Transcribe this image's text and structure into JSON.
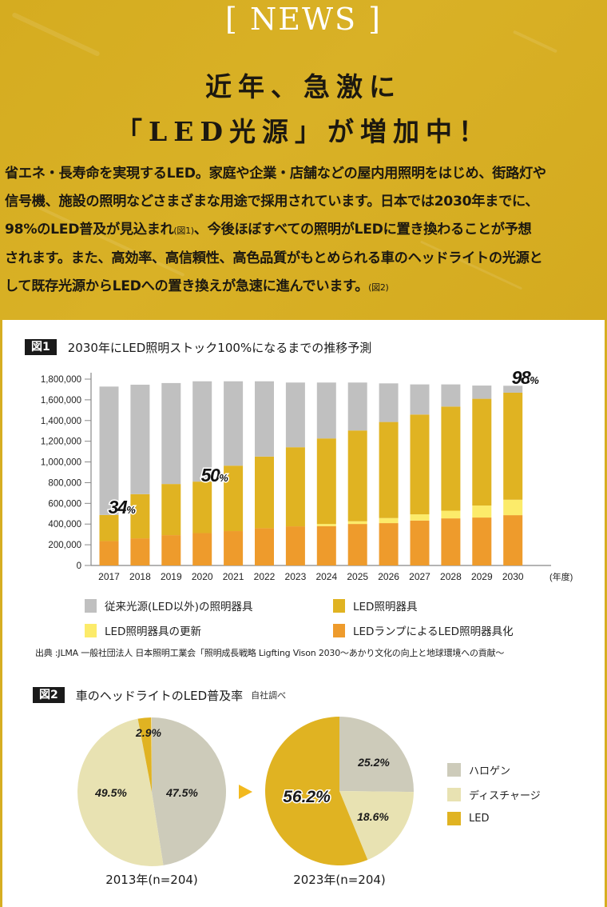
{
  "banner": {
    "section_label": "[ NEWS ]",
    "headline_line1": "近年、急激に",
    "headline_line2": "「LED光源」が増加中！",
    "intro_lines": [
      {
        "text": "省エネ・長寿命を実現するLED。家庭や企業・店舗などの屋内用照明をはじめ、街路灯や"
      },
      {
        "text": "信号機、施設の照明などさまざまな用途で採用されています。日本では2030年までに、"
      },
      {
        "text": "98%のLED普及が見込まれ",
        "ref": "(図1)",
        "after": "、今後ほぼすべての照明がLEDに置き換わることが予想"
      },
      {
        "text": "されます。また、高効率、高信頼性、高色品質がもとめられる車のヘッドライトの光源と"
      },
      {
        "text": "して既存光源からLEDへの置き換えが急速に進んでいます。",
        "ref": "(図2)"
      }
    ],
    "colors": {
      "background": "#D6AE22",
      "title": "#FFFFFF",
      "text": "#1C1810"
    }
  },
  "figure1": {
    "tag": "図1",
    "title": "2030年にLED照明ストック100%になるまでの推移予測",
    "source": "出典 :JLMA 一般社団法人 日本照明工業会「照明成長戦略 Ligfting Vison 2030〜あかり文化の向上と地球環境への貢献〜"
  },
  "figure2": {
    "tag": "図2",
    "title": "車のヘッドライトのLED普及率",
    "subtitle": "自社調べ"
  },
  "chart_data": [
    {
      "type": "bar",
      "stacked": true,
      "title": "2030年にLED照明ストック100%になるまでの推移予測",
      "xlabel": "(年度)",
      "ylabel": "",
      "ylim": [
        0,
        1800000
      ],
      "yticks": [
        0,
        200000,
        400000,
        600000,
        800000,
        1000000,
        1200000,
        1400000,
        1600000,
        1800000
      ],
      "ytick_labels": [
        "0",
        "200,000",
        "400,000",
        "600,000",
        "800,000",
        "1,000,000",
        "1,200,000",
        "1,400,000",
        "1,600,000",
        "1,800,000"
      ],
      "grid": false,
      "legend_position": "bottom",
      "categories": [
        "2017",
        "2018",
        "2019",
        "2020",
        "2021",
        "2022",
        "2023",
        "2024",
        "2025",
        "2026",
        "2027",
        "2028",
        "2029",
        "2030"
      ],
      "series": [
        {
          "name": "LEDランプによるLED照明器具化",
          "color": "#EE9B2C",
          "values": [
            236000,
            262000,
            293000,
            313000,
            332000,
            360000,
            378000,
            380000,
            401000,
            409000,
            434000,
            455000,
            463000,
            486000
          ]
        },
        {
          "name": "LED照明器具の更新",
          "color": "#FCEB6A",
          "values": [
            0,
            0,
            0,
            0,
            0,
            0,
            0,
            21000,
            26000,
            49000,
            60000,
            74000,
            116000,
            149000
          ]
        },
        {
          "name": "LED照明器具",
          "color": "#E0B322",
          "values": [
            252000,
            427000,
            494000,
            497000,
            632000,
            692000,
            764000,
            826000,
            877000,
            928000,
            964000,
            1006000,
            1031000,
            1034000
          ]
        },
        {
          "name": "従来光源(LED以外)の照明器具",
          "color": "#C0C0C0",
          "values": [
            1240000,
            1057000,
            975000,
            969000,
            815000,
            727000,
            625000,
            540000,
            463000,
            373000,
            291000,
            214000,
            128000,
            67000
          ]
        }
      ],
      "legend_order": [
        "従来光源(LED以外)の照明器具",
        "LED照明器具",
        "LED照明器具の更新",
        "LEDランプによるLED照明器具化"
      ],
      "annotations": [
        {
          "category": "2017",
          "number": "34",
          "unit": "%"
        },
        {
          "category": "2020",
          "number": "50",
          "unit": "%"
        },
        {
          "category": "2030",
          "number": "98",
          "unit": "%"
        }
      ]
    },
    {
      "type": "pie",
      "title": "2013年(n=204)",
      "slices": [
        {
          "label": "ハロゲン",
          "value": 47.5,
          "text": "47.5%",
          "color": "#CDCBBA"
        },
        {
          "label": "ディスチャージ",
          "value": 49.5,
          "text": "49.5%",
          "color": "#E8E2B2"
        },
        {
          "label": "LED",
          "value": 2.9,
          "text": "2.9%",
          "color": "#E0B322"
        }
      ]
    },
    {
      "type": "pie",
      "title": "2023年(n=204)",
      "slices": [
        {
          "label": "ハロゲン",
          "value": 25.2,
          "text": "25.2%",
          "color": "#CDCBBA"
        },
        {
          "label": "ディスチャージ",
          "value": 18.6,
          "text": "18.6%",
          "color": "#E8E2B2"
        },
        {
          "label": "LED",
          "value": 56.2,
          "text": "56.2%",
          "color": "#E0B322"
        }
      ],
      "legend_position": "right",
      "legend": [
        "ハロゲン",
        "ディスチャージ",
        "LED"
      ]
    }
  ],
  "arrow_icon_color": "#F2B91E"
}
